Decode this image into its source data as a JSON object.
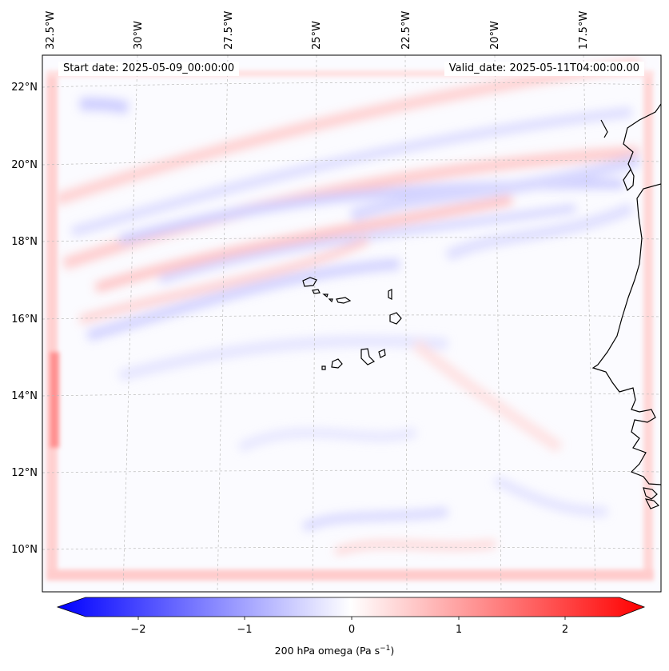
{
  "map": {
    "start_label": "Start date: 2025-05-09_00:00:00",
    "valid_label": "Valid_date: 2025-05-11T04:00:00.00",
    "lon_labels": [
      "32.5°W",
      "30°W",
      "27.5°W",
      "25°W",
      "22.5°W",
      "20°W",
      "17.5°W"
    ],
    "lat_labels": [
      "22°N",
      "20°N",
      "18°N",
      "16°N",
      "14°N",
      "12°N",
      "10°N"
    ],
    "gridlines": true,
    "variable": "200 hPa omega",
    "units_text": "Pa s",
    "units_exp": "−1",
    "colormap": [
      "#0000ff",
      "#ffffff",
      "#ff0000"
    ],
    "colorbar": {
      "ticks": [
        "−2",
        "−1",
        "0",
        "1",
        "2"
      ],
      "tick_values": [
        -2,
        -1,
        0,
        1,
        2
      ],
      "range": [
        -2.5,
        2.5
      ],
      "extend": "both",
      "orientation": "horizontal"
    },
    "features": [
      "coastline-west-africa",
      "cape-verde-islands"
    ]
  }
}
